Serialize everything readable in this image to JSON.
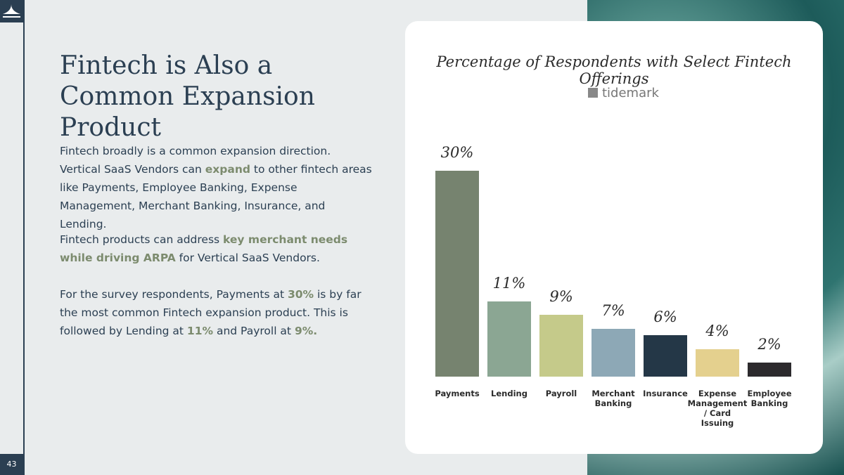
{
  "page_number": "43",
  "heading": "Fintech is Also a Common Expansion Product",
  "paragraphs": [
    [
      {
        "text": "Fintech broadly is a common expansion direction. Vertical SaaS Vendors can "
      },
      {
        "text": "expand",
        "emphasis": true
      },
      {
        "text": " to other fintech areas like Payments, Employee Banking, Expense Management, Merchant Banking, Insurance, and Lending."
      }
    ],
    [
      {
        "text": "Fintech products can address "
      },
      {
        "text": "key merchant needs while driving ARPA",
        "emphasis": true
      },
      {
        "text": " for Vertical SaaS Vendors."
      }
    ],
    [
      {
        "text": "For the survey respondents, Payments at "
      },
      {
        "text": "30%",
        "emphasis": true
      },
      {
        "text": " is by far the most common Fintech expansion product. This is followed by Lending at "
      },
      {
        "text": "11%",
        "emphasis": true
      },
      {
        "text": " and Payroll at "
      },
      {
        "text": "9%.",
        "emphasis": true
      }
    ]
  ],
  "chart_data": {
    "type": "bar",
    "title": "Percentage of Respondents with Select Fintech Offerings",
    "brand": "tidemark",
    "categories": [
      "Payments",
      "Lending",
      "Payroll",
      "Merchant Banking",
      "Insurance",
      "Expense Management / Card Issuing",
      "Employee Banking"
    ],
    "values": [
      30,
      11,
      9,
      7,
      6,
      4,
      2
    ],
    "value_labels": [
      "30%",
      "11%",
      "9%",
      "7%",
      "6%",
      "4%",
      "2%"
    ],
    "colors": [
      "#76836f",
      "#8ba693",
      "#c5ca8a",
      "#8da8b6",
      "#243747",
      "#e4d08e",
      "#2c2a2d"
    ]
  }
}
